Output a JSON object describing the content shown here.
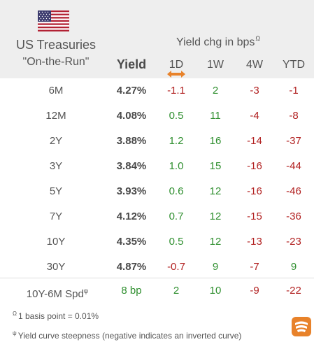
{
  "header": {
    "title_line1": "US Treasuries",
    "title_line2": "\"On-the-Run\"",
    "yield_label": "Yield",
    "chg_label": "Yield chg in bps",
    "chg_marker": "Ω",
    "columns": [
      "1D",
      "1W",
      "4W",
      "YTD"
    ]
  },
  "rows": [
    {
      "tenor": "6M",
      "yield": "4.27%",
      "d1": "-1.1",
      "w1": "2",
      "w4": "-3",
      "ytd": "-1"
    },
    {
      "tenor": "12M",
      "yield": "4.08%",
      "d1": "0.5",
      "w1": "11",
      "w4": "-4",
      "ytd": "-8"
    },
    {
      "tenor": "2Y",
      "yield": "3.88%",
      "d1": "1.2",
      "w1": "16",
      "w4": "-14",
      "ytd": "-37"
    },
    {
      "tenor": "3Y",
      "yield": "3.84%",
      "d1": "1.0",
      "w1": "15",
      "w4": "-16",
      "ytd": "-44"
    },
    {
      "tenor": "5Y",
      "yield": "3.93%",
      "d1": "0.6",
      "w1": "12",
      "w4": "-16",
      "ytd": "-46"
    },
    {
      "tenor": "7Y",
      "yield": "4.12%",
      "d1": "0.7",
      "w1": "12",
      "w4": "-15",
      "ytd": "-36"
    },
    {
      "tenor": "10Y",
      "yield": "4.35%",
      "d1": "0.5",
      "w1": "12",
      "w4": "-13",
      "ytd": "-23"
    },
    {
      "tenor": "30Y",
      "yield": "4.87%",
      "d1": "-0.7",
      "w1": "9",
      "w4": "-7",
      "ytd": "9"
    }
  ],
  "spread": {
    "label": "10Y-6M Spd",
    "marker": "ψ",
    "value": "8 bp",
    "d1": "2",
    "w1": "10",
    "w4": "-9",
    "ytd": "-22"
  },
  "footnotes": {
    "basis_marker": "Ω",
    "basis_text": "1 basis point = 0.01%",
    "curve_marker": "ψ",
    "curve_text": "Yield curve steepness (negative indicates an inverted curve)"
  },
  "colors": {
    "positive": "#2f8f2f",
    "negative": "#b22222",
    "header_bg": "#eeeeee",
    "sort_arrow": "#e8822a",
    "logo": "#e8822a"
  },
  "icons": {
    "flag": "us-flag-icon",
    "sort": "sort-arrows-icon",
    "logo": "brand-logo-icon"
  }
}
